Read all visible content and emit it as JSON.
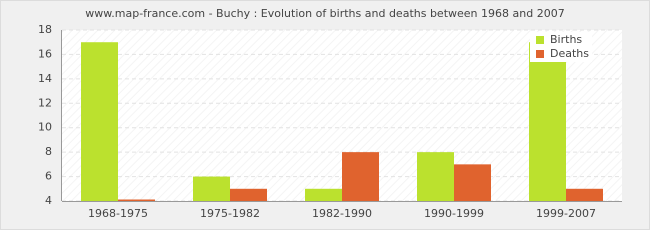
{
  "chart_data": {
    "type": "bar",
    "title": "www.map-france.com - Buchy : Evolution of births and deaths between 1968 and 2007",
    "categories": [
      "1968-1975",
      "1975-1982",
      "1982-1990",
      "1990-1999",
      "1999-2007"
    ],
    "series": [
      {
        "name": "Births",
        "color": "#bbe12e",
        "values": [
          17,
          6,
          5,
          8,
          17
        ]
      },
      {
        "name": "Deaths",
        "color": "#e0632e",
        "values": [
          4,
          5,
          8,
          7,
          5
        ]
      }
    ],
    "ylim": [
      4,
      18
    ],
    "yticks": [
      4,
      6,
      8,
      10,
      12,
      14,
      16,
      18
    ],
    "grid": true,
    "legend": "top-right"
  }
}
